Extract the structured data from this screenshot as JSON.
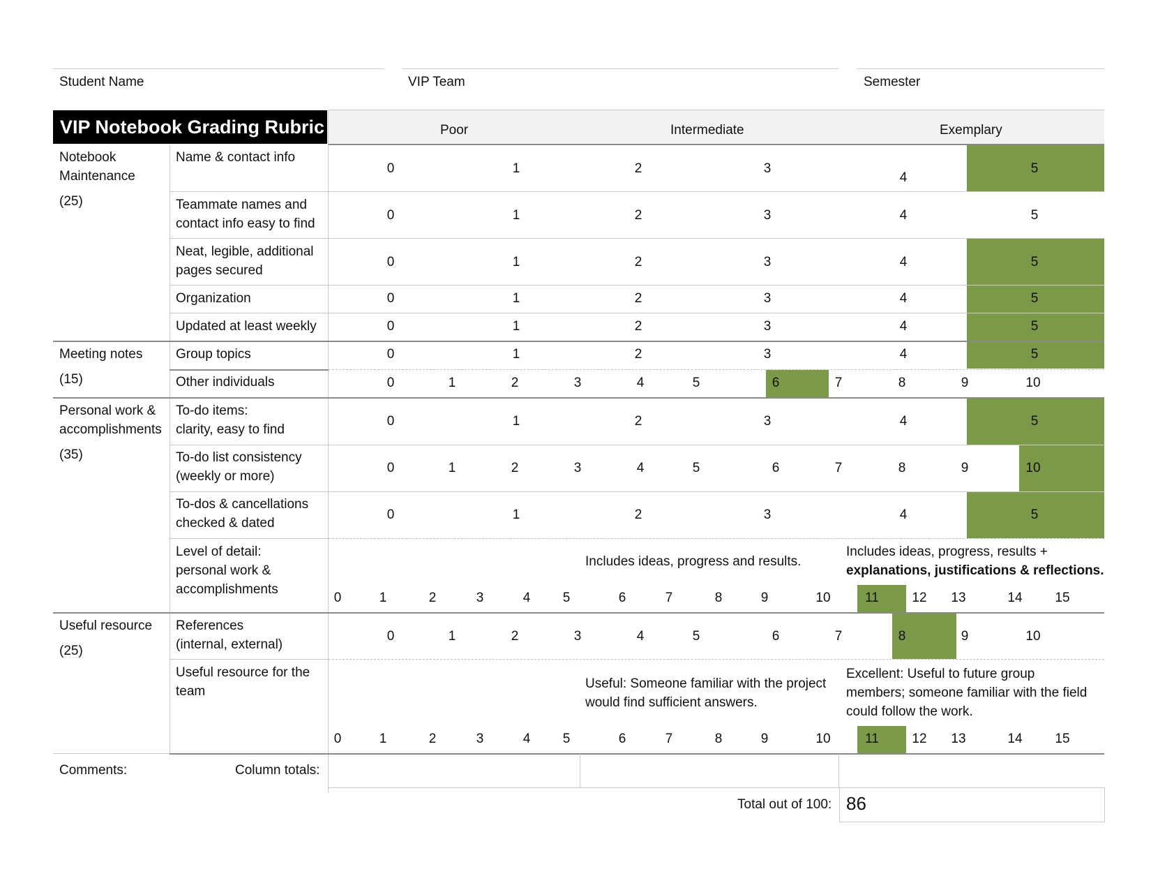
{
  "header": {
    "student_name": "Student Name",
    "vip_team": "VIP Team",
    "semester": "Semester"
  },
  "title": "VIP Notebook Grading Rubric",
  "columns": {
    "poor": "Poor",
    "intermediate": "Intermediate",
    "exemplary": "Exemplary"
  },
  "sections": {
    "maintenance": {
      "line1": "Notebook",
      "line2": "Maintenance",
      "points": "(25)"
    },
    "meeting": {
      "line1": "Meeting notes",
      "points": "(15)"
    },
    "personal": {
      "line1": "Personal work &",
      "line2": "accomplishments",
      "points": "(35)"
    },
    "useful": {
      "line1": "Useful resource",
      "points": "(25)"
    }
  },
  "criteria": {
    "name_contact": "Name & contact info",
    "teammate_1": "Teammate names and",
    "teammate_2": "contact info easy to find",
    "neat_1": "Neat, legible, additional",
    "neat_2": "pages secured",
    "organization": "Organization",
    "updated": "Updated at least weekly",
    "group_topics": "Group topics",
    "other_individuals": "Other individuals",
    "todo_items_1": "To-do items:",
    "todo_items_2": "clarity, easy to find",
    "todo_consistency_1": "To-do list consistency",
    "todo_consistency_2": "(weekly or more)",
    "todos_cancel_1": "To-dos & cancellations",
    "todos_cancel_2": "checked & dated",
    "detail_1": "Level of detail:",
    "detail_2": "personal work &",
    "detail_3": "accomplishments",
    "references_1": "References",
    "references_2": "(internal, external)",
    "useful_team_1": "Useful resource for the",
    "useful_team_2": "team"
  },
  "descriptors": {
    "detail_intermediate": "Includes ideas, progress and results.",
    "detail_exemplary_1": "Includes ideas, progress, results +",
    "detail_exemplary_2": "explanations, justifications & reflections.",
    "useful_intermediate_1": "Useful: Someone familiar with the project",
    "useful_intermediate_2": "would find sufficient answers.",
    "useful_exemplary_1": "Excellent: Useful to future group",
    "useful_exemplary_2": "members; someone familiar with the field",
    "useful_exemplary_3": "could follow the work."
  },
  "scores": {
    "name_contact": 5,
    "teammate": null,
    "neat": 5,
    "organization": 5,
    "updated": 5,
    "group_topics": 5,
    "other_individuals": 6,
    "todo_items": 5,
    "todo_consistency": 10,
    "todos_cancel": 5,
    "detail": 11,
    "references": 8,
    "useful_team": 11
  },
  "footer": {
    "comments": "Comments:",
    "column_totals": "Column totals:",
    "total_label": "Total out of 100:",
    "total_value": "86"
  },
  "highlight_color": "#7a9a48"
}
